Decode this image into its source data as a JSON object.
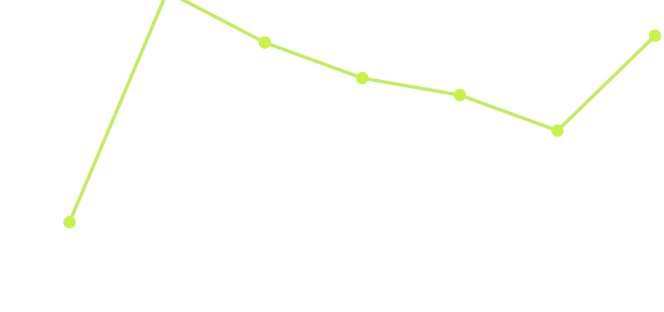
{
  "chart_data": {
    "type": "line",
    "x": [
      1,
      2,
      3,
      4,
      5,
      6,
      7
    ],
    "series": [
      {
        "values": [
          12,
          80,
          65,
          54.5,
          49.5,
          39,
          67
        ],
        "color": "#c6f24a",
        "line_color": "#c3ec62"
      }
    ],
    "ylim": [
      -10,
      82
    ],
    "grid": false,
    "legend": "none"
  }
}
